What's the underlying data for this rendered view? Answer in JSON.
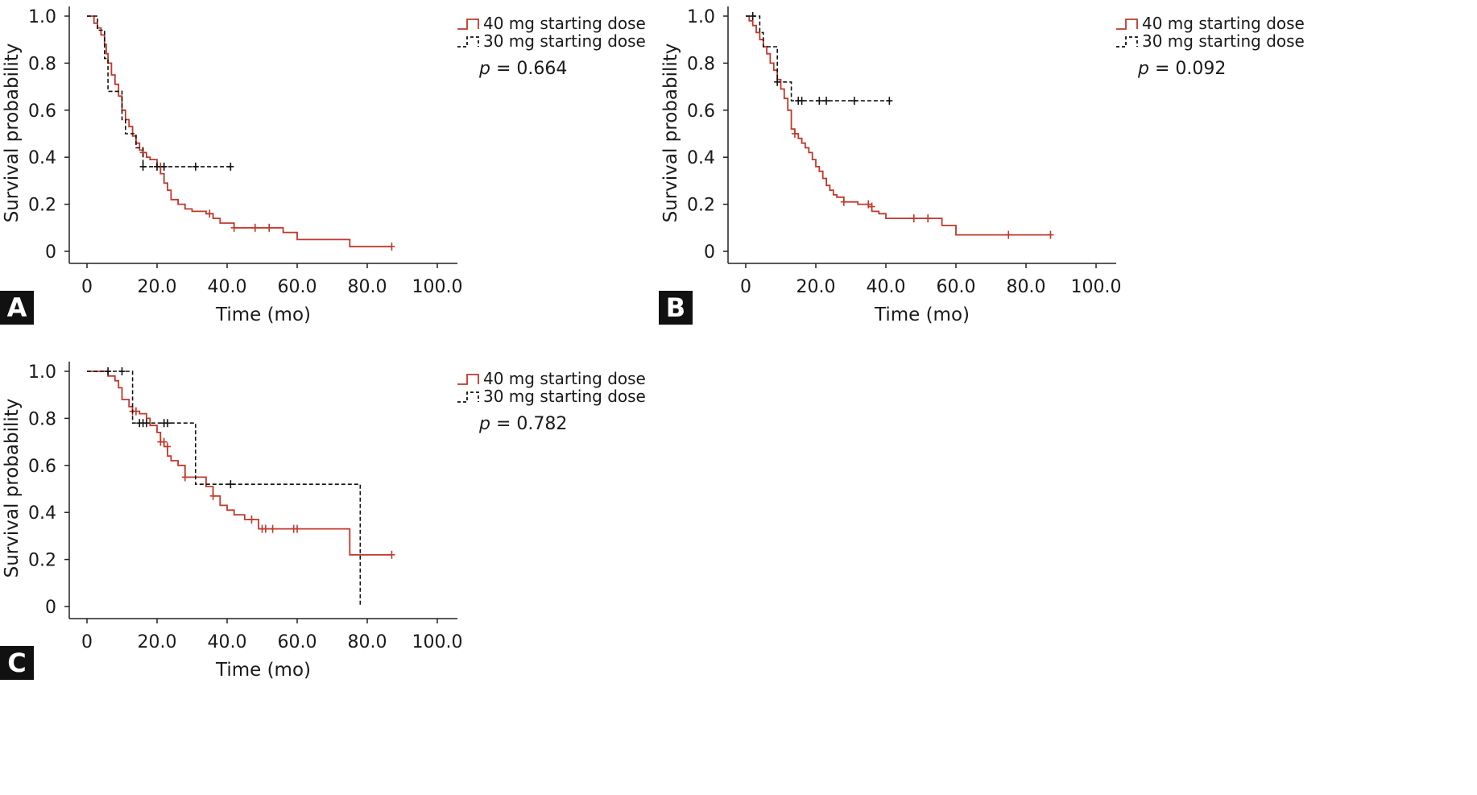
{
  "figure": {
    "colors": {
      "series_40mg": "#c0392b",
      "series_30mg": "#111111",
      "axis": "#222222"
    }
  },
  "chart_data": [
    {
      "type": "line",
      "panel_label": "A",
      "xlabel": "Time (mo)",
      "ylabel": "Survival probability",
      "xlim": [
        0,
        100
      ],
      "ylim": [
        0,
        1
      ],
      "x_ticks": [
        "0",
        "20.0",
        "40.0",
        "60.0",
        "80.0",
        "100.0"
      ],
      "y_ticks": [
        "0",
        "0.2",
        "0.4",
        "0.6",
        "0.8",
        "1.0"
      ],
      "annotation": {
        "p_label": "p",
        "p_value": "= 0.664"
      },
      "legend_position": "top-right",
      "series": [
        {
          "name": "40 mg starting dose",
          "style": "solid-step",
          "x": [
            0,
            2,
            3,
            4,
            5,
            5.5,
            6,
            7,
            8,
            9,
            10,
            11,
            12,
            13,
            14,
            15,
            16,
            17,
            18,
            20,
            21,
            22,
            23,
            24,
            26,
            28,
            30,
            32,
            34,
            36,
            38,
            42,
            45,
            52,
            56,
            60,
            70,
            75,
            87
          ],
          "y": [
            1.0,
            0.97,
            0.95,
            0.92,
            0.88,
            0.84,
            0.8,
            0.75,
            0.71,
            0.66,
            0.6,
            0.56,
            0.53,
            0.49,
            0.46,
            0.43,
            0.42,
            0.4,
            0.39,
            0.36,
            0.33,
            0.29,
            0.26,
            0.22,
            0.2,
            0.18,
            0.17,
            0.17,
            0.16,
            0.14,
            0.12,
            0.1,
            0.1,
            0.1,
            0.08,
            0.05,
            0.05,
            0.02,
            0.02
          ],
          "censor_x": [
            16,
            21,
            35,
            42,
            48,
            52,
            87
          ],
          "censor_y": [
            0.42,
            0.36,
            0.16,
            0.1,
            0.1,
            0.1,
            0.02
          ]
        },
        {
          "name": "30 mg starting dose",
          "style": "dashed-step",
          "x": [
            0,
            3,
            5,
            6,
            10,
            11,
            14,
            16,
            41
          ],
          "y": [
            1.0,
            0.94,
            0.82,
            0.68,
            0.56,
            0.5,
            0.44,
            0.36,
            0.36
          ],
          "censor_x": [
            16,
            20,
            22,
            31,
            41
          ],
          "censor_y": [
            0.36,
            0.36,
            0.36,
            0.36,
            0.36
          ]
        }
      ]
    },
    {
      "type": "line",
      "panel_label": "B",
      "xlabel": "Time (mo)",
      "ylabel": "Survival probability",
      "xlim": [
        0,
        100
      ],
      "ylim": [
        0,
        1
      ],
      "x_ticks": [
        "0",
        "20.0",
        "40.0",
        "60.0",
        "80.0",
        "100.0"
      ],
      "y_ticks": [
        "0",
        "0.2",
        "0.4",
        "0.6",
        "0.8",
        "1.0"
      ],
      "annotation": {
        "p_label": "p",
        "p_value": "= 0.092"
      },
      "legend_position": "top-right",
      "series": [
        {
          "name": "40 mg starting dose",
          "style": "solid-step",
          "x": [
            0,
            1,
            2,
            3,
            4,
            5,
            6,
            7,
            8,
            9,
            10,
            11,
            12,
            13,
            14,
            15,
            16,
            17,
            18,
            19,
            20,
            21,
            22,
            23,
            24,
            25,
            26,
            28,
            32,
            35,
            36,
            38,
            40,
            45,
            50,
            56,
            60,
            75,
            87
          ],
          "y": [
            1.0,
            0.98,
            0.96,
            0.93,
            0.9,
            0.87,
            0.84,
            0.8,
            0.77,
            0.73,
            0.69,
            0.65,
            0.6,
            0.52,
            0.5,
            0.48,
            0.46,
            0.44,
            0.42,
            0.39,
            0.36,
            0.34,
            0.31,
            0.28,
            0.26,
            0.24,
            0.23,
            0.21,
            0.2,
            0.19,
            0.17,
            0.16,
            0.14,
            0.14,
            0.14,
            0.11,
            0.07,
            0.07,
            0.07
          ],
          "censor_x": [
            14,
            28,
            35,
            36,
            48,
            52,
            75,
            87
          ],
          "censor_y": [
            0.5,
            0.21,
            0.2,
            0.19,
            0.14,
            0.14,
            0.07,
            0.07
          ]
        },
        {
          "name": "30 mg starting dose",
          "style": "dashed-step",
          "x": [
            0,
            4,
            5,
            9,
            13,
            41
          ],
          "y": [
            1.0,
            0.93,
            0.87,
            0.72,
            0.64,
            0.64
          ],
          "censor_x": [
            2,
            9,
            15,
            16,
            21,
            23,
            31,
            41
          ],
          "censor_y": [
            1.0,
            0.72,
            0.64,
            0.64,
            0.64,
            0.64,
            0.64,
            0.64
          ]
        }
      ]
    },
    {
      "type": "line",
      "panel_label": "C",
      "xlabel": "Time (mo)",
      "ylabel": "Survival probability",
      "xlim": [
        0,
        100
      ],
      "ylim": [
        0,
        1
      ],
      "x_ticks": [
        "0",
        "20.0",
        "40.0",
        "60.0",
        "80.0",
        "100.0"
      ],
      "y_ticks": [
        "0",
        "0.2",
        "0.4",
        "0.6",
        "0.8",
        "1.0"
      ],
      "annotation": {
        "p_label": "p",
        "p_value": "= 0.782"
      },
      "legend_position": "top-right",
      "series": [
        {
          "name": "40 mg starting dose",
          "style": "solid-step",
          "x": [
            0,
            6,
            8,
            9,
            10,
            12,
            13,
            15,
            17,
            18,
            20,
            21,
            22,
            23,
            24,
            26,
            28,
            32,
            34,
            36,
            38,
            40,
            42,
            45,
            49,
            75,
            87
          ],
          "y": [
            1.0,
            0.98,
            0.96,
            0.93,
            0.88,
            0.85,
            0.83,
            0.82,
            0.8,
            0.77,
            0.74,
            0.7,
            0.68,
            0.64,
            0.62,
            0.6,
            0.55,
            0.55,
            0.51,
            0.47,
            0.43,
            0.41,
            0.39,
            0.37,
            0.33,
            0.22,
            0.22
          ],
          "censor_x": [
            13,
            14,
            21,
            22,
            23,
            28,
            36,
            47,
            50,
            51,
            53,
            59,
            60,
            87
          ],
          "censor_y": [
            0.83,
            0.83,
            0.7,
            0.7,
            0.68,
            0.55,
            0.47,
            0.37,
            0.33,
            0.33,
            0.33,
            0.33,
            0.33,
            0.22
          ]
        },
        {
          "name": "30 mg starting dose",
          "style": "dashed-step",
          "x": [
            0,
            11,
            13,
            31,
            78,
            78
          ],
          "y": [
            1.0,
            1.0,
            0.78,
            0.52,
            0.52,
            0.0
          ],
          "censor_x": [
            6,
            10,
            15,
            16,
            17,
            22,
            23,
            41
          ],
          "censor_y": [
            1.0,
            1.0,
            0.78,
            0.78,
            0.78,
            0.78,
            0.78,
            0.52
          ]
        }
      ]
    }
  ]
}
